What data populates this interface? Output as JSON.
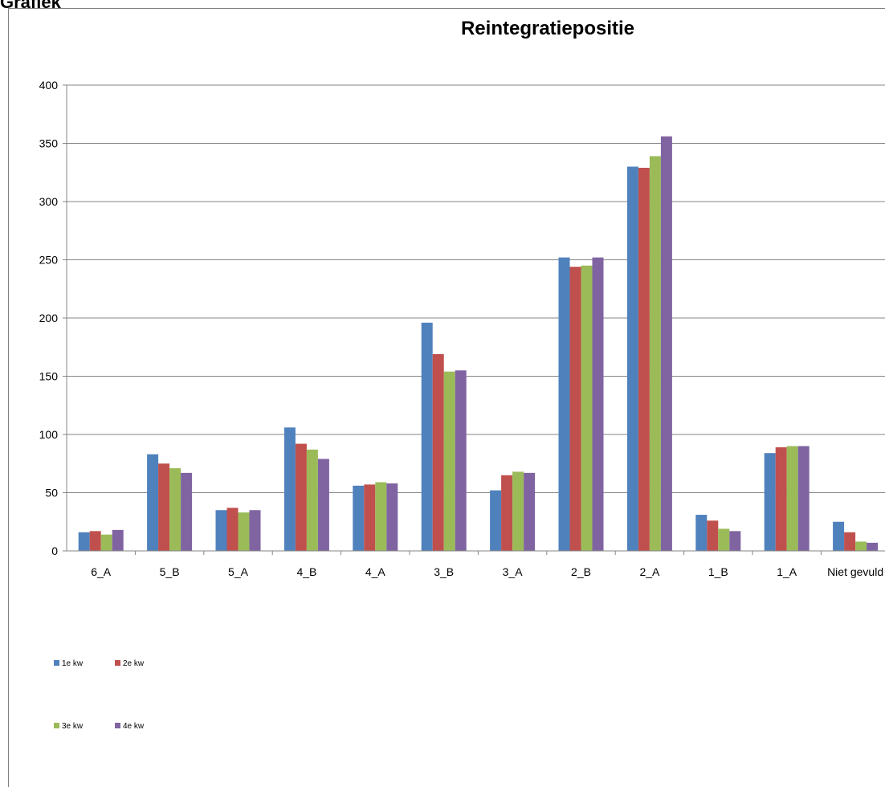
{
  "sheet": {
    "title": "Grafiek"
  },
  "colors": {
    "s1": "#4f81bd",
    "s2": "#c0504d",
    "s3": "#9bbb59",
    "s4": "#8064a2",
    "grid": "#868686"
  },
  "chart_data": {
    "type": "bar",
    "title": "Reintegratiepositie",
    "xlabel": "",
    "ylabel": "",
    "ylim": [
      0,
      400
    ],
    "yticks": [
      0,
      50,
      100,
      150,
      200,
      250,
      300,
      350,
      400
    ],
    "grid": true,
    "legend_placement": "bottom-left",
    "categories": [
      "6_A",
      "5_B",
      "5_A",
      "4_B",
      "4_A",
      "3_B",
      "3_A",
      "2_B",
      "2_A",
      "1_B",
      "1_A",
      "Niet gevuld"
    ],
    "series": [
      {
        "name": "1e kw",
        "values": [
          16,
          83,
          35,
          106,
          56,
          196,
          52,
          252,
          330,
          31,
          84,
          25
        ]
      },
      {
        "name": "2e kw",
        "values": [
          17,
          75,
          37,
          92,
          57,
          169,
          65,
          244,
          329,
          26,
          89,
          16
        ]
      },
      {
        "name": "3e kw",
        "values": [
          14,
          71,
          33,
          87,
          59,
          154,
          68,
          245,
          339,
          19,
          90,
          8
        ]
      },
      {
        "name": "4e kw",
        "values": [
          18,
          67,
          35,
          79,
          58,
          155,
          67,
          252,
          356,
          17,
          90,
          7
        ]
      }
    ]
  }
}
